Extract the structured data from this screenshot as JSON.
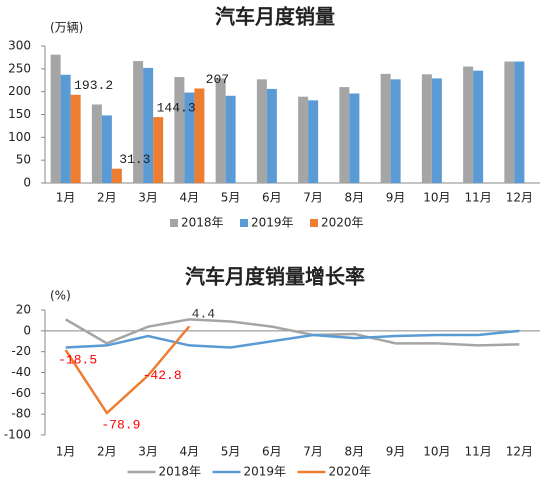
{
  "chart_data": [
    {
      "type": "bar",
      "title": "汽车月度销量",
      "y_label": "(万辆)",
      "categories": [
        "1月",
        "2月",
        "3月",
        "4月",
        "5月",
        "6月",
        "7月",
        "8月",
        "9月",
        "10月",
        "11月",
        "12月"
      ],
      "series": [
        {
          "name": "2018年",
          "color": "#a5a5a5",
          "values": [
            281,
            172,
            267,
            232,
            229,
            227,
            189,
            210,
            239,
            238,
            255,
            266
          ]
        },
        {
          "name": "2019年",
          "color": "#5b9bd5",
          "values": [
            237,
            148,
            252,
            198,
            191,
            206,
            181,
            196,
            227,
            229,
            246,
            266
          ]
        },
        {
          "name": "2020年",
          "color": "#ed7d31",
          "labels": true,
          "label_colors": [
            "#222222",
            "#222222",
            "#222222",
            "#222222"
          ],
          "values": [
            193.2,
            31.3,
            144.3,
            207,
            null,
            null,
            null,
            null,
            null,
            null,
            null,
            null
          ]
        }
      ],
      "ylim": [
        0,
        300
      ],
      "yticks": [
        0,
        50,
        100,
        150,
        200,
        250,
        300
      ]
    },
    {
      "type": "line",
      "title": "汽车月度销量增长率",
      "y_label": "(%)",
      "categories": [
        "1月",
        "2月",
        "3月",
        "4月",
        "5月",
        "6月",
        "7月",
        "8月",
        "9月",
        "10月",
        "11月",
        "12月"
      ],
      "series": [
        {
          "name": "2018年",
          "color": "#a5a5a5",
          "values": [
            11,
            -12,
            4,
            11,
            9,
            4,
            -4,
            -3,
            -12,
            -12,
            -14,
            -13
          ]
        },
        {
          "name": "2019年",
          "color": "#5b9bd5",
          "values": [
            -16,
            -14,
            -5,
            -14,
            -16,
            -10,
            -4,
            -7,
            -5,
            -4,
            -4,
            0
          ]
        },
        {
          "name": "2020年",
          "color": "#ed7d31",
          "labels": true,
          "label_colors": [
            "#ff0000",
            "#ff0000",
            "#ff0000",
            "#333333"
          ],
          "values": [
            -18.5,
            -78.9,
            -42.8,
            4.4,
            null,
            null,
            null,
            null,
            null,
            null,
            null,
            null
          ]
        }
      ],
      "ylim": [
        -100,
        20
      ],
      "yticks": [
        20,
        0,
        -20,
        -40,
        -60,
        -80,
        -100
      ]
    }
  ]
}
